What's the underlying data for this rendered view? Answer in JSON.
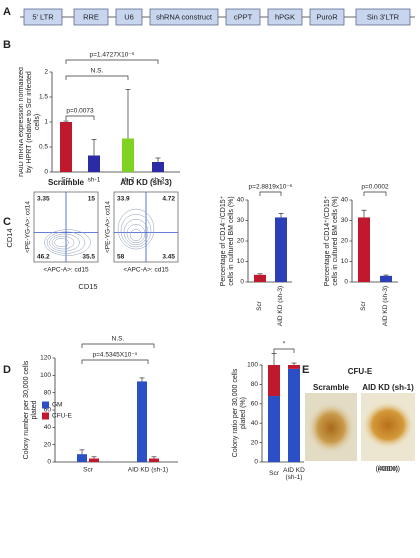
{
  "panels": [
    "A",
    "B",
    "C",
    "D",
    "E"
  ],
  "construct": [
    "5' LTR",
    "RRE",
    "U6",
    "shRNA construct",
    "cPPT",
    "hPGK",
    "PuroR",
    "Sin 3'LTR"
  ],
  "flow": {
    "y_axis": "CD14",
    "x_axis": "CD15",
    "plots": [
      {
        "title": "Scramble",
        "y_label": "<PE-YG-A>: cd14",
        "x_label": "<APC-A>: cd15",
        "quadrants": [
          3.35,
          15,
          46.2,
          35.5
        ]
      },
      {
        "title": "AID KD (sh-3)",
        "y_label": "<PE-YG-A>: cd14",
        "x_label": "<APC-A>: cd15",
        "quadrants": [
          33.9,
          4.72,
          58,
          3.45
        ]
      }
    ]
  },
  "colonies": {
    "title": "CFU-E",
    "images": [
      {
        "label": "Scramble",
        "magnification": "(400X)"
      },
      {
        "label": "AID KD (sh-1)",
        "magnification": "(400X)"
      }
    ]
  },
  "chart_data": [
    {
      "type": "bar",
      "y_label": "hAID mRNA expression normalized by HPRT (relative to Scr infected cells)",
      "categories": [
        "Scr",
        "sh-1",
        "sh-2",
        "sh-3"
      ],
      "values": [
        1,
        0.33,
        0.67,
        0.2
      ],
      "errors": [
        0.02,
        0.32,
        0.98,
        0.08
      ],
      "colors": [
        "#c0182d",
        "#2b2ba6",
        "#7ed320",
        "#2b2ba6"
      ],
      "ylim": [
        0,
        2
      ],
      "yticks": [
        0,
        0.5,
        1,
        1.5,
        2
      ],
      "annotations": [
        "p=1.4727X10⁻⁶",
        "N.S.",
        "p=0.0073"
      ]
    },
    {
      "type": "bar",
      "y_label": "Percentage of CD14⁻/CD15⁺ cells in cultured BM cells (%)",
      "categories": [
        "Scr",
        "AID KD (sh-3)"
      ],
      "values": [
        3.5,
        31.5
      ],
      "errors": [
        0.5,
        2
      ],
      "colors": [
        "#c0182d",
        "#2b3fb6"
      ],
      "ylim": [
        0,
        40
      ],
      "yticks": [
        0,
        10,
        20,
        30,
        40
      ],
      "annotations": [
        "p=2.8819x10⁻⁶"
      ]
    },
    {
      "type": "bar",
      "y_label": "Percentage of CD14⁺/CD15⁺ cells in cultured BM cells (%)",
      "categories": [
        "Scr",
        "AID KD (sh-3)"
      ],
      "values": [
        31.5,
        3
      ],
      "errors": [
        3.5,
        0.4
      ],
      "colors": [
        "#c0182d",
        "#2b3fb6"
      ],
      "ylim": [
        0,
        40
      ],
      "yticks": [
        0,
        10,
        20,
        30,
        40
      ],
      "annotations": [
        "p=0.0002"
      ]
    },
    {
      "type": "bar",
      "y_label": "Colony number per 30,000 cells plated",
      "categories": [
        "Scr",
        "AID KD (sh-1)"
      ],
      "series": [
        {
          "name": "GM",
          "color": "#2b4fc4",
          "values": [
            9,
            93
          ],
          "errors": [
            5,
            4
          ]
        },
        {
          "name": "CFU-E",
          "color": "#c0182d",
          "values": [
            4,
            4
          ],
          "errors": [
            2,
            2
          ]
        }
      ],
      "ylim": [
        0,
        120
      ],
      "yticks": [
        0,
        20,
        40,
        60,
        80,
        100,
        120
      ],
      "annotations": [
        "N.S.",
        "p=4.5345X10⁻⁵"
      ]
    },
    {
      "type": "stacked_bar",
      "y_label": "Colony ratio per 30,000 cells plated (%)",
      "categories": [
        "Scr",
        "AID KD (sh-1)"
      ],
      "series": [
        {
          "name": "GM",
          "color": "#2b4fc4",
          "values": [
            68,
            96
          ]
        },
        {
          "name": "CFU-E",
          "color": "#c0182d",
          "values": [
            32,
            4
          ],
          "errors": [
            12,
            2
          ]
        }
      ],
      "ylim": [
        0,
        100
      ],
      "yticks": [
        0,
        20,
        40,
        60,
        80,
        100
      ],
      "annotations": [
        "*"
      ]
    }
  ]
}
